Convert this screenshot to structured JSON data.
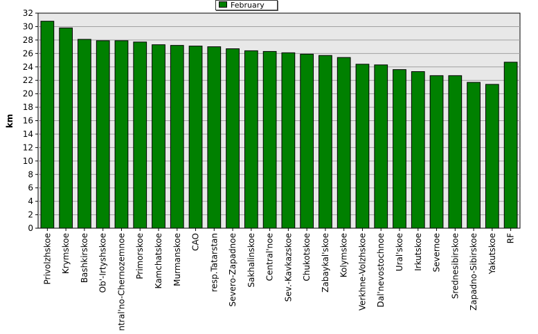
{
  "chart_data": {
    "type": "bar",
    "title": "",
    "xlabel": "",
    "ylabel": "km",
    "ylim": [
      0,
      32
    ],
    "yticks": [
      0,
      2,
      4,
      6,
      8,
      10,
      12,
      14,
      16,
      18,
      20,
      22,
      24,
      26,
      28,
      30,
      32
    ],
    "grid": true,
    "legend_placement": "top-center",
    "categories": [
      "Privolzhskoe",
      "Krymskoe",
      "Bashkirskoe",
      "Ob'-Irtyshskoe",
      "Central'no-Chernozemnoe",
      "Primorskoe",
      "Kamchatskoe",
      "Murmanskoe",
      "CAO",
      "resp.Tatarstan",
      "Severo-Zapadnoe",
      "Sakhalinskoe",
      "Central'noe",
      "Sev.-Kavkazskoe",
      "Chukotskoe",
      "Zabaykal'skoe",
      "Kolymskoe",
      "Verkhne-Volzhskoe",
      "Dal'nevostochnoe",
      "Ural'skoe",
      "Irkutskoe",
      "Severnoe",
      "Srednesibirskoe",
      "Zapadno-Sibirskoe",
      "Yakutskoe",
      "RF"
    ],
    "series": [
      {
        "name": "February",
        "color": "#008000",
        "values": [
          30.8,
          29.8,
          28.1,
          27.9,
          27.9,
          27.7,
          27.3,
          27.2,
          27.1,
          27.0,
          26.7,
          26.4,
          26.3,
          26.1,
          25.9,
          25.7,
          25.4,
          24.4,
          24.3,
          23.6,
          23.3,
          22.7,
          22.7,
          21.7,
          21.4,
          24.7
        ]
      }
    ],
    "colors": {
      "bar": "#008000",
      "plot_background": "#e8e8e8",
      "grid": "#a0a0a0"
    }
  }
}
